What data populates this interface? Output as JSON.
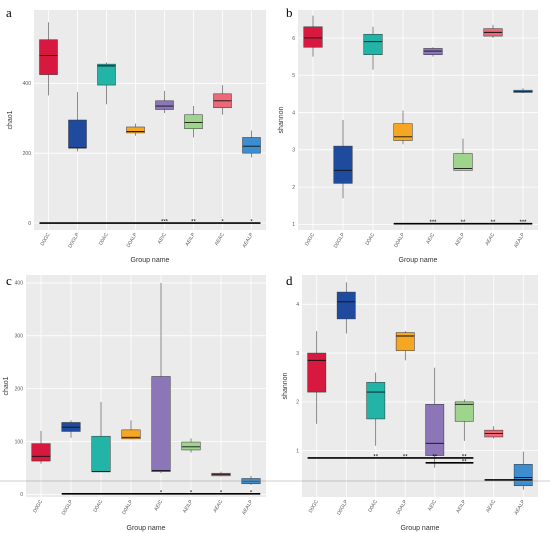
{
  "chart_data": [
    {
      "type": "boxplot",
      "panel_label": "a",
      "xlabel": "Group name",
      "ylabel": "chao1",
      "ylim": [
        -20,
        610
      ],
      "yticks": [
        0,
        200,
        400
      ],
      "categories": [
        "D0GC",
        "D0GLP",
        "D0AC",
        "D0ALP",
        "AEIC",
        "AEILP",
        "AEAC",
        "AEALP"
      ],
      "colors": [
        "#d7193f",
        "#1f4b9e",
        "#22b5a7",
        "#f5a623",
        "#8c76b8",
        "#9ed48c",
        "#ec6a78",
        "#3d8ed0"
      ],
      "boxes": [
        {
          "min": 365,
          "q1": 425,
          "median": 480,
          "q3": 525,
          "max": 575
        },
        {
          "min": 205,
          "q1": 215,
          "median": 215,
          "q3": 295,
          "max": 375
        },
        {
          "min": 340,
          "q1": 395,
          "median": 450,
          "q3": 455,
          "max": 460
        },
        {
          "min": 250,
          "q1": 258,
          "median": 262,
          "q3": 275,
          "max": 285
        },
        {
          "min": 315,
          "q1": 325,
          "median": 335,
          "q3": 350,
          "max": 378
        },
        {
          "min": 245,
          "q1": 270,
          "median": 288,
          "q3": 310,
          "max": 335
        },
        {
          "min": 310,
          "q1": 330,
          "median": 350,
          "q3": 370,
          "max": 395
        },
        {
          "min": 188,
          "q1": 200,
          "median": 220,
          "q3": 245,
          "max": 265
        }
      ],
      "significance": [
        {
          "from": "D0GC",
          "to": "AEALP",
          "y": 0,
          "labels": [
            "***",
            "**",
            "*",
            "*"
          ]
        }
      ]
    },
    {
      "type": "boxplot",
      "panel_label": "b",
      "xlabel": "Group name",
      "ylabel": "shannon",
      "ylim": [
        0.85,
        6.75
      ],
      "yticks": [
        1,
        2,
        3,
        4,
        5,
        6
      ],
      "categories": [
        "D0GC",
        "D0GLP",
        "D0AC",
        "D0ALP",
        "AEIC",
        "AEILP",
        "AEAC",
        "AEALP"
      ],
      "colors": [
        "#d7193f",
        "#1f4b9e",
        "#22b5a7",
        "#f5a623",
        "#8c76b8",
        "#9ed48c",
        "#ec6a78",
        "#3d8ed0"
      ],
      "boxes": [
        {
          "min": 5.5,
          "q1": 5.75,
          "median": 6.0,
          "q3": 6.3,
          "max": 6.6
        },
        {
          "min": 1.7,
          "q1": 2.1,
          "median": 2.45,
          "q3": 3.1,
          "max": 3.8
        },
        {
          "min": 5.15,
          "q1": 5.55,
          "median": 5.9,
          "q3": 6.1,
          "max": 6.3
        },
        {
          "min": 3.15,
          "q1": 3.25,
          "median": 3.35,
          "q3": 3.7,
          "max": 4.05
        },
        {
          "min": 5.5,
          "q1": 5.55,
          "median": 5.65,
          "q3": 5.72,
          "max": 5.75
        },
        {
          "min": 2.45,
          "q1": 2.45,
          "median": 2.5,
          "q3": 2.9,
          "max": 3.3
        },
        {
          "min": 6.0,
          "q1": 6.05,
          "median": 6.15,
          "q3": 6.25,
          "max": 6.35
        },
        {
          "min": 4.52,
          "q1": 4.54,
          "median": 4.56,
          "q3": 4.6,
          "max": 4.65
        }
      ],
      "significance": [
        {
          "from": "D0ALP",
          "to": "AEALP",
          "y": 1.02,
          "labels": [
            "***",
            "**",
            "**",
            "***"
          ]
        }
      ]
    },
    {
      "type": "boxplot",
      "panel_label": "c",
      "xlabel": "Group name",
      "ylabel": "chao1",
      "ylim": [
        -5,
        415
      ],
      "yticks": [
        0,
        100,
        200,
        300,
        400
      ],
      "categories": [
        "D0GC",
        "D0GLP",
        "D0AC",
        "D0ALP",
        "AEIC",
        "AEILP",
        "AEAC",
        "AEALP"
      ],
      "colors": [
        "#d7193f",
        "#1f4b9e",
        "#22b5a7",
        "#f5a623",
        "#8c76b8",
        "#9ed48c",
        "#ec6a78",
        "#3d8ed0"
      ],
      "boxes": [
        {
          "min": 58,
          "q1": 63,
          "median": 72,
          "q3": 96,
          "max": 120
        },
        {
          "min": 107,
          "q1": 119,
          "median": 127,
          "q3": 136,
          "max": 140
        },
        {
          "min": 42,
          "q1": 43,
          "median": 43,
          "q3": 110,
          "max": 175
        },
        {
          "min": 104,
          "q1": 105,
          "median": 108,
          "q3": 122,
          "max": 140
        },
        {
          "min": 40,
          "q1": 43,
          "median": 45,
          "q3": 223,
          "max": 400
        },
        {
          "min": 79,
          "q1": 84,
          "median": 90,
          "q3": 99,
          "max": 106
        },
        {
          "min": 34,
          "q1": 35,
          "median": 38,
          "q3": 40,
          "max": 43
        },
        {
          "min": 18,
          "q1": 20,
          "median": 25,
          "q3": 30,
          "max": 35
        }
      ],
      "significance": [
        {
          "from": "D0GLP",
          "to": "AEALP",
          "y": 1,
          "labels": [
            "*",
            "*",
            "*",
            "*"
          ]
        }
      ]
    },
    {
      "type": "boxplot",
      "panel_label": "d",
      "xlabel": "Group name",
      "ylabel": "shannon",
      "ylim": [
        0.05,
        4.6
      ],
      "yticks": [
        1,
        2,
        3,
        4
      ],
      "categories": [
        "D0GC",
        "D0GLP",
        "D0AC",
        "D0ALP",
        "AEIC",
        "AEILP",
        "AEAC",
        "AEALP"
      ],
      "colors": [
        "#d7193f",
        "#1f4b9e",
        "#22b5a7",
        "#f5a623",
        "#8c76b8",
        "#9ed48c",
        "#ec6a78",
        "#3d8ed0"
      ],
      "boxes": [
        {
          "min": 1.55,
          "q1": 2.2,
          "median": 2.85,
          "q3": 3.0,
          "max": 3.45
        },
        {
          "min": 3.4,
          "q1": 3.7,
          "median": 4.05,
          "q3": 4.25,
          "max": 4.45
        },
        {
          "min": 1.1,
          "q1": 1.65,
          "median": 2.2,
          "q3": 2.4,
          "max": 2.6
        },
        {
          "min": 2.85,
          "q1": 3.05,
          "median": 3.35,
          "q3": 3.42,
          "max": 3.45
        },
        {
          "min": 0.65,
          "q1": 0.9,
          "median": 1.15,
          "q3": 1.95,
          "max": 2.7
        },
        {
          "min": 1.2,
          "q1": 1.6,
          "median": 1.95,
          "q3": 2.0,
          "max": 2.05
        },
        {
          "min": 1.25,
          "q1": 1.28,
          "median": 1.35,
          "q3": 1.42,
          "max": 1.5
        },
        {
          "min": 0.2,
          "q1": 0.28,
          "median": 0.45,
          "q3": 0.72,
          "max": 0.98
        }
      ],
      "significance": [
        {
          "from": "D0GC",
          "to": "AEILP",
          "y": 0.85,
          "labels": [
            "**",
            "**",
            "**",
            "**"
          ]
        },
        {
          "from": "AEIC",
          "to": "AEILP",
          "y": 0.75,
          "labels": [
            "**"
          ]
        },
        {
          "from": "AEAC",
          "to": "AEALP",
          "y": 0.4,
          "labels": []
        }
      ]
    }
  ]
}
